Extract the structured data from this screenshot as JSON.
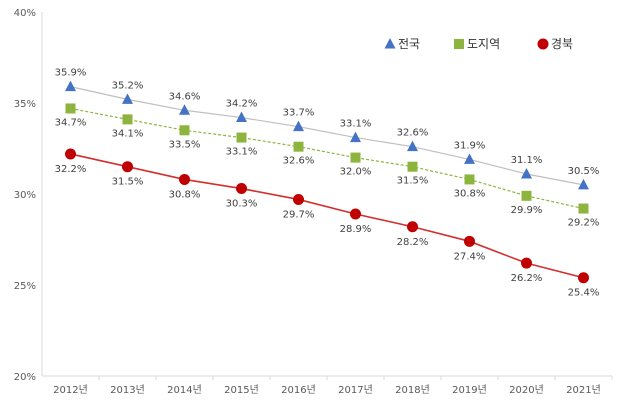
{
  "chart_data": {
    "type": "line",
    "categories": [
      "2012년",
      "2013년",
      "2014년",
      "2015년",
      "2016년",
      "2017년",
      "2018년",
      "2019년",
      "2020년",
      "2021년"
    ],
    "series": [
      {
        "name": "전국",
        "values": [
          35.9,
          35.2,
          34.6,
          34.2,
          33.7,
          33.1,
          32.6,
          31.9,
          31.1,
          30.5
        ],
        "labels": [
          "35.9%",
          "35.2%",
          "34.6%",
          "34.2%",
          "33.7%",
          "33.1%",
          "32.6%",
          "31.9%",
          "31.1%",
          "30.5%"
        ],
        "marker": "triangle",
        "color": "#4472C4",
        "line_color": "#BFBFBF",
        "line_style": "solid"
      },
      {
        "name": "도지역",
        "values": [
          34.7,
          34.1,
          33.5,
          33.1,
          32.6,
          32.0,
          31.5,
          30.8,
          29.9,
          29.2
        ],
        "labels": [
          "34.7%",
          "34.1%",
          "33.5%",
          "33.1%",
          "32.6%",
          "32.0%",
          "31.5%",
          "30.8%",
          "29.9%",
          "29.2%"
        ],
        "marker": "square",
        "color": "#8DB43E",
        "line_color": "#8DB43E",
        "line_style": "dashed"
      },
      {
        "name": "경북",
        "values": [
          32.2,
          31.5,
          30.8,
          30.3,
          29.7,
          28.9,
          28.2,
          27.4,
          26.2,
          25.4
        ],
        "labels": [
          "32.2%",
          "31.5%",
          "30.8%",
          "30.3%",
          "29.7%",
          "28.9%",
          "28.2%",
          "27.4%",
          "26.2%",
          "25.4%"
        ],
        "marker": "circle",
        "color": "#C00000",
        "line_color": "#D32F2F",
        "line_style": "solid"
      }
    ],
    "yticks": [
      20,
      25,
      30,
      35,
      40
    ],
    "ytick_labels": [
      "20%",
      "25%",
      "30%",
      "35%",
      "40%"
    ],
    "ylim": [
      20,
      40
    ],
    "grid": false,
    "legend": "top-right"
  }
}
